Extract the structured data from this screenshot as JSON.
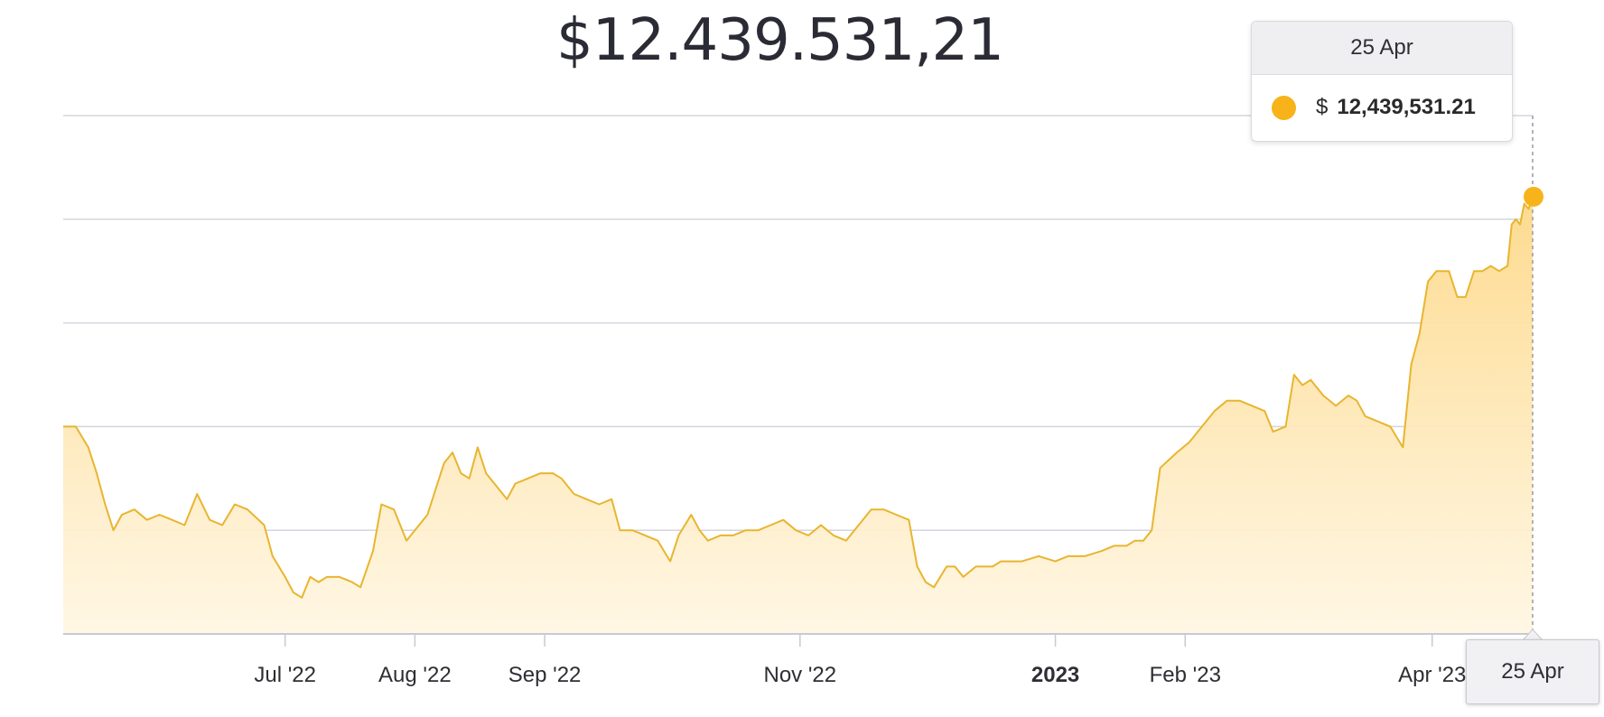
{
  "headline": "$12.439.531,21",
  "tooltip": {
    "date": "25 Apr",
    "currency": "$",
    "value": "12,439,531.21",
    "dot_color": "#f7b319"
  },
  "crosshair_label": "25 Apr",
  "colors": {
    "line": "#e8b52f",
    "fill_top": "#fdd98a",
    "fill_bottom": "#fff6e2",
    "grid": "#d5d5dd",
    "marker": "#f7b319"
  },
  "chart_data": {
    "type": "area",
    "title": "",
    "xlabel": "",
    "ylabel": "",
    "grid": true,
    "legend": "none",
    "x_range": [
      "2022-05-09",
      "2023-04-25"
    ],
    "ylim": [
      0,
      100
    ],
    "x_ticks": [
      {
        "date": "2022-07-01",
        "label": "Jul '22",
        "bold": false
      },
      {
        "date": "2022-08-01",
        "label": "Aug '22",
        "bold": false
      },
      {
        "date": "2022-09-01",
        "label": "Sep '22",
        "bold": false
      },
      {
        "date": "2022-11-01",
        "label": "Nov '22",
        "bold": false
      },
      {
        "date": "2023-01-01",
        "label": "2023",
        "bold": true
      },
      {
        "date": "2023-02-01",
        "label": "Feb '23",
        "bold": false
      },
      {
        "date": "2023-04-01",
        "label": "Apr '23",
        "bold": false
      }
    ],
    "series": [
      {
        "values": [
          [
            "2022-05-09",
            40
          ],
          [
            "2022-05-12",
            40
          ],
          [
            "2022-05-15",
            36
          ],
          [
            "2022-05-17",
            31
          ],
          [
            "2022-05-19",
            25
          ],
          [
            "2022-05-21",
            20
          ],
          [
            "2022-05-23",
            23
          ],
          [
            "2022-05-26",
            24
          ],
          [
            "2022-05-29",
            22
          ],
          [
            "2022-06-01",
            23
          ],
          [
            "2022-06-04",
            22
          ],
          [
            "2022-06-07",
            21
          ],
          [
            "2022-06-10",
            27
          ],
          [
            "2022-06-13",
            22
          ],
          [
            "2022-06-16",
            21
          ],
          [
            "2022-06-19",
            25
          ],
          [
            "2022-06-22",
            24
          ],
          [
            "2022-06-26",
            21
          ],
          [
            "2022-06-28",
            15
          ],
          [
            "2022-07-01",
            11
          ],
          [
            "2022-07-03",
            8
          ],
          [
            "2022-07-05",
            7
          ],
          [
            "2022-07-07",
            11
          ],
          [
            "2022-07-09",
            10
          ],
          [
            "2022-07-11",
            11
          ],
          [
            "2022-07-14",
            11
          ],
          [
            "2022-07-17",
            10
          ],
          [
            "2022-07-19",
            9
          ],
          [
            "2022-07-22",
            16
          ],
          [
            "2022-07-24",
            25
          ],
          [
            "2022-07-27",
            24
          ],
          [
            "2022-07-30",
            18
          ],
          [
            "2022-08-02",
            21
          ],
          [
            "2022-08-04",
            23
          ],
          [
            "2022-08-06",
            28
          ],
          [
            "2022-08-08",
            33
          ],
          [
            "2022-08-10",
            35
          ],
          [
            "2022-08-12",
            31
          ],
          [
            "2022-08-14",
            30
          ],
          [
            "2022-08-16",
            36
          ],
          [
            "2022-08-18",
            31
          ],
          [
            "2022-08-20",
            29
          ],
          [
            "2022-08-23",
            26
          ],
          [
            "2022-08-25",
            29
          ],
          [
            "2022-08-28",
            30
          ],
          [
            "2022-08-31",
            31
          ],
          [
            "2022-09-03",
            31
          ],
          [
            "2022-09-05",
            30
          ],
          [
            "2022-09-08",
            27
          ],
          [
            "2022-09-11",
            26
          ],
          [
            "2022-09-14",
            25
          ],
          [
            "2022-09-17",
            26
          ],
          [
            "2022-09-19",
            20
          ],
          [
            "2022-09-22",
            20
          ],
          [
            "2022-09-25",
            19
          ],
          [
            "2022-09-28",
            18
          ],
          [
            "2022-10-01",
            14
          ],
          [
            "2022-10-03",
            19
          ],
          [
            "2022-10-06",
            23
          ],
          [
            "2022-10-08",
            20
          ],
          [
            "2022-10-10",
            18
          ],
          [
            "2022-10-13",
            19
          ],
          [
            "2022-10-16",
            19
          ],
          [
            "2022-10-19",
            20
          ],
          [
            "2022-10-22",
            20
          ],
          [
            "2022-10-25",
            21
          ],
          [
            "2022-10-28",
            22
          ],
          [
            "2022-10-31",
            20
          ],
          [
            "2022-11-03",
            19
          ],
          [
            "2022-11-06",
            21
          ],
          [
            "2022-11-09",
            19
          ],
          [
            "2022-11-12",
            18
          ],
          [
            "2022-11-15",
            21
          ],
          [
            "2022-11-18",
            24
          ],
          [
            "2022-11-21",
            24
          ],
          [
            "2022-11-24",
            23
          ],
          [
            "2022-11-27",
            22
          ],
          [
            "2022-11-29",
            13
          ],
          [
            "2022-12-01",
            10
          ],
          [
            "2022-12-03",
            9
          ],
          [
            "2022-12-06",
            13
          ],
          [
            "2022-12-08",
            13
          ],
          [
            "2022-12-10",
            11
          ],
          [
            "2022-12-13",
            13
          ],
          [
            "2022-12-17",
            13
          ],
          [
            "2022-12-19",
            14
          ],
          [
            "2022-12-24",
            14
          ],
          [
            "2022-12-28",
            15
          ],
          [
            "2023-01-01",
            14
          ],
          [
            "2023-01-04",
            15
          ],
          [
            "2023-01-08",
            15
          ],
          [
            "2023-01-12",
            16
          ],
          [
            "2023-01-15",
            17
          ],
          [
            "2023-01-18",
            17
          ],
          [
            "2023-01-20",
            18
          ],
          [
            "2023-01-22",
            18
          ],
          [
            "2023-01-24",
            20
          ],
          [
            "2023-01-26",
            32
          ],
          [
            "2023-01-30",
            35
          ],
          [
            "2023-02-02",
            37
          ],
          [
            "2023-02-05",
            40
          ],
          [
            "2023-02-08",
            43
          ],
          [
            "2023-02-11",
            45
          ],
          [
            "2023-02-14",
            45
          ],
          [
            "2023-02-17",
            44
          ],
          [
            "2023-02-20",
            43
          ],
          [
            "2023-02-22",
            39
          ],
          [
            "2023-02-25",
            40
          ],
          [
            "2023-02-27",
            50
          ],
          [
            "2023-03-01",
            48
          ],
          [
            "2023-03-03",
            49
          ],
          [
            "2023-03-06",
            46
          ],
          [
            "2023-03-09",
            44
          ],
          [
            "2023-03-12",
            46
          ],
          [
            "2023-03-14",
            45
          ],
          [
            "2023-03-16",
            42
          ],
          [
            "2023-03-19",
            41
          ],
          [
            "2023-03-22",
            40
          ],
          [
            "2023-03-25",
            36
          ],
          [
            "2023-03-27",
            52
          ],
          [
            "2023-03-29",
            58
          ],
          [
            "2023-03-31",
            68
          ],
          [
            "2023-04-02",
            70
          ],
          [
            "2023-04-05",
            70
          ],
          [
            "2023-04-07",
            65
          ],
          [
            "2023-04-09",
            65
          ],
          [
            "2023-04-11",
            70
          ],
          [
            "2023-04-13",
            70
          ],
          [
            "2023-04-15",
            71
          ],
          [
            "2023-04-17",
            70
          ],
          [
            "2023-04-19",
            71
          ],
          [
            "2023-04-20",
            79
          ],
          [
            "2023-04-21",
            80
          ],
          [
            "2023-04-22",
            79
          ],
          [
            "2023-04-23",
            83
          ],
          [
            "2023-04-24",
            82
          ],
          [
            "2023-04-25",
            84
          ]
        ]
      }
    ]
  }
}
